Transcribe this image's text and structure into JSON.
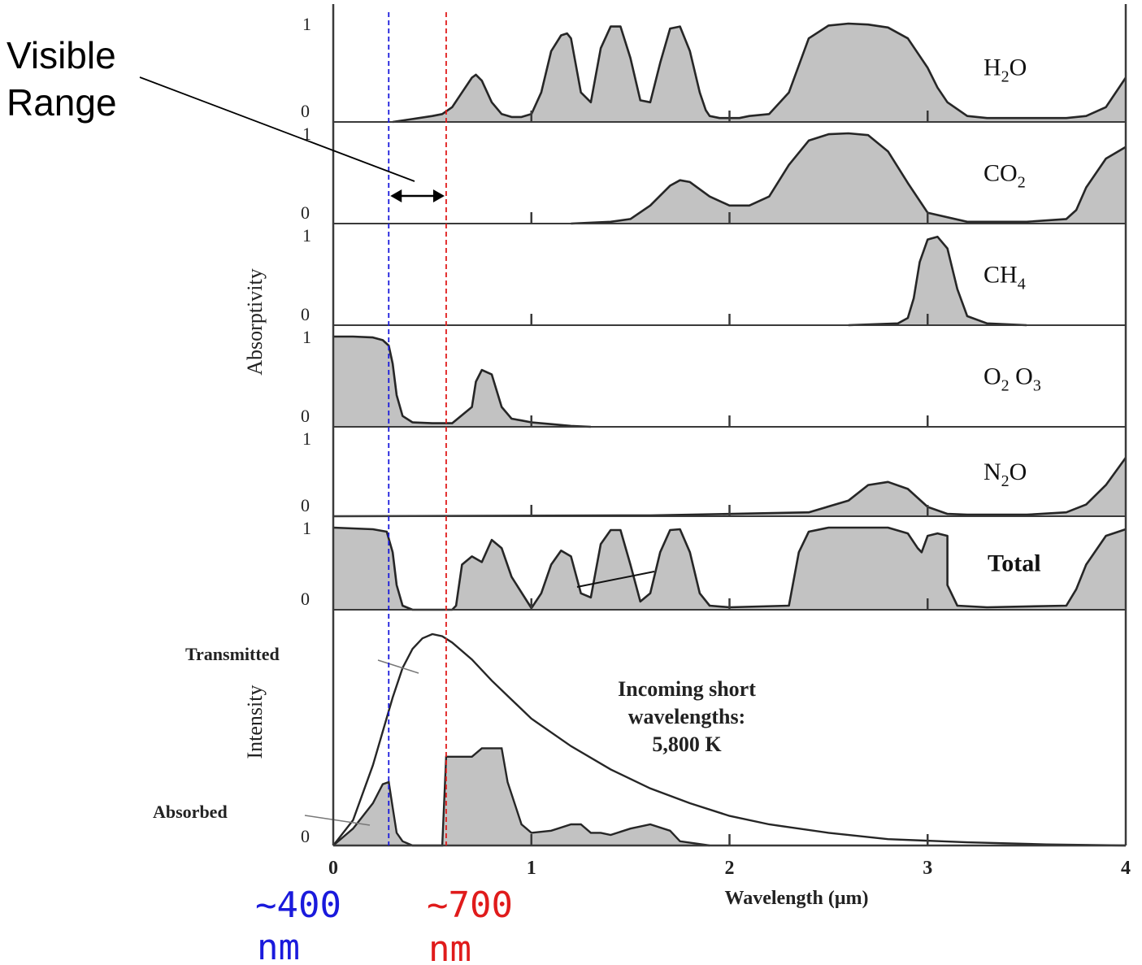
{
  "chart_data": [
    {
      "type": "area",
      "title": "",
      "xlabel": "Wavelength (μm)",
      "ylabel": "Absorptivity",
      "xlim": [
        0,
        4
      ],
      "ylim": [
        0,
        1
      ],
      "x_ticks": [
        "0",
        "1",
        "2",
        "3",
        "4"
      ],
      "y_ticks": [
        "0",
        "1"
      ],
      "grid": false,
      "panels": [
        {
          "key": "h2o",
          "label": "H",
          "label_sub": "2",
          "label_tail": "O",
          "x": [
            0.3,
            0.4,
            0.5,
            0.55,
            0.6,
            0.65,
            0.7,
            0.72,
            0.75,
            0.8,
            0.85,
            0.9,
            0.95,
            1.0,
            1.05,
            1.1,
            1.15,
            1.18,
            1.2,
            1.25,
            1.3,
            1.35,
            1.4,
            1.45,
            1.5,
            1.55,
            1.6,
            1.65,
            1.7,
            1.75,
            1.8,
            1.85,
            1.88,
            1.9,
            1.95,
            2.0,
            2.05,
            2.1,
            2.2,
            2.3,
            2.4,
            2.5,
            2.6,
            2.7,
            2.8,
            2.9,
            3.0,
            3.05,
            3.1,
            3.2,
            3.3,
            3.4,
            3.5,
            3.6,
            3.7,
            3.8,
            3.9,
            4.0
          ],
          "y": [
            0.0,
            0.03,
            0.06,
            0.08,
            0.15,
            0.3,
            0.45,
            0.48,
            0.42,
            0.2,
            0.08,
            0.05,
            0.05,
            0.08,
            0.3,
            0.72,
            0.88,
            0.9,
            0.85,
            0.3,
            0.2,
            0.75,
            0.97,
            0.97,
            0.65,
            0.22,
            0.2,
            0.6,
            0.95,
            0.97,
            0.72,
            0.3,
            0.12,
            0.06,
            0.04,
            0.04,
            0.04,
            0.06,
            0.08,
            0.3,
            0.85,
            0.98,
            1.0,
            0.99,
            0.96,
            0.85,
            0.55,
            0.35,
            0.2,
            0.06,
            0.04,
            0.04,
            0.04,
            0.04,
            0.04,
            0.06,
            0.15,
            0.45
          ]
        },
        {
          "key": "co2",
          "label": "CO",
          "label_sub": "2",
          "label_tail": "",
          "x": [
            1.2,
            1.4,
            1.5,
            1.6,
            1.7,
            1.75,
            1.8,
            1.9,
            2.0,
            2.1,
            2.2,
            2.3,
            2.4,
            2.5,
            2.6,
            2.7,
            2.8,
            2.9,
            3.0,
            3.2,
            3.5,
            3.7,
            3.75,
            3.8,
            3.9,
            4.0
          ],
          "y": [
            0.0,
            0.02,
            0.05,
            0.2,
            0.42,
            0.48,
            0.46,
            0.3,
            0.2,
            0.2,
            0.3,
            0.65,
            0.92,
            0.99,
            1.0,
            0.98,
            0.8,
            0.45,
            0.12,
            0.02,
            0.02,
            0.05,
            0.15,
            0.4,
            0.72,
            0.85
          ]
        },
        {
          "key": "ch4",
          "label": "CH",
          "label_sub": "4",
          "label_tail": "",
          "x": [
            2.6,
            2.85,
            2.9,
            2.93,
            2.96,
            3.0,
            3.05,
            3.1,
            3.15,
            3.2,
            3.3,
            3.5
          ],
          "y": [
            0.0,
            0.02,
            0.08,
            0.3,
            0.7,
            0.95,
            0.98,
            0.85,
            0.4,
            0.1,
            0.02,
            0.0
          ]
        },
        {
          "key": "o2o3",
          "label": "O",
          "label_sub": "2",
          "label_tail": " O",
          "label_sub2": "3",
          "x": [
            0.0,
            0.1,
            0.2,
            0.25,
            0.28,
            0.3,
            0.32,
            0.35,
            0.4,
            0.5,
            0.6,
            0.7,
            0.72,
            0.75,
            0.8,
            0.85,
            0.9,
            0.95,
            1.0,
            1.1,
            1.2,
            1.3
          ],
          "y": [
            1.0,
            1.0,
            0.99,
            0.96,
            0.9,
            0.7,
            0.35,
            0.12,
            0.05,
            0.04,
            0.04,
            0.22,
            0.5,
            0.63,
            0.58,
            0.22,
            0.09,
            0.07,
            0.05,
            0.03,
            0.01,
            0.0
          ]
        },
        {
          "key": "n2o",
          "label": "N",
          "label_sub": "2",
          "label_tail": "O",
          "x": [
            0.0,
            1.6,
            2.4,
            2.6,
            2.7,
            2.8,
            2.9,
            3.0,
            3.1,
            3.2,
            3.5,
            3.7,
            3.8,
            3.9,
            4.0
          ],
          "y": [
            0.0,
            0.01,
            0.05,
            0.2,
            0.4,
            0.44,
            0.35,
            0.12,
            0.03,
            0.02,
            0.02,
            0.05,
            0.15,
            0.4,
            0.75
          ]
        },
        {
          "key": "total",
          "label": "Total",
          "label_sub": "",
          "label_tail": "",
          "x": [
            0.0,
            0.2,
            0.27,
            0.3,
            0.32,
            0.35,
            0.4,
            0.5,
            0.6,
            0.62,
            0.65,
            0.7,
            0.75,
            0.8,
            0.85,
            0.9,
            1.0,
            1.05,
            1.1,
            1.15,
            1.2,
            1.25,
            1.3,
            1.35,
            1.4,
            1.45,
            1.5,
            1.55,
            1.6,
            1.65,
            1.7,
            1.75,
            1.8,
            1.85,
            1.9,
            2.0,
            2.3,
            2.35,
            2.4,
            2.5,
            2.8,
            2.9,
            2.95,
            2.97,
            3.0,
            3.05,
            3.1,
            3.1,
            3.15,
            3.3,
            3.7,
            3.75,
            3.8,
            3.9,
            4.0
          ],
          "y": [
            1.0,
            0.98,
            0.95,
            0.7,
            0.3,
            0.05,
            0.0,
            0.0,
            0.0,
            0.05,
            0.55,
            0.65,
            0.58,
            0.85,
            0.75,
            0.4,
            0.02,
            0.2,
            0.55,
            0.72,
            0.65,
            0.2,
            0.15,
            0.8,
            0.97,
            0.97,
            0.55,
            0.1,
            0.2,
            0.7,
            0.97,
            0.98,
            0.7,
            0.2,
            0.05,
            0.03,
            0.05,
            0.7,
            0.95,
            1.0,
            1.0,
            0.93,
            0.75,
            0.7,
            0.9,
            0.93,
            0.9,
            0.3,
            0.05,
            0.03,
            0.05,
            0.25,
            0.55,
            0.9,
            0.98
          ]
        }
      ]
    },
    {
      "type": "area",
      "title": "Incoming short wavelengths: 5,800 K",
      "title_lines": [
        "Incoming short",
        "wavelengths:",
        "5,800 K"
      ],
      "xlabel": "Wavelength (μm)",
      "ylabel": "Intensity",
      "xlim": [
        0,
        4
      ],
      "ylim": [
        0,
        1
      ],
      "x_ticks": [
        "0",
        "1",
        "2",
        "3",
        "4"
      ],
      "y_ticks": [
        "0"
      ],
      "series": [
        {
          "name": "Transmitted",
          "x": [
            0.0,
            0.1,
            0.2,
            0.3,
            0.35,
            0.4,
            0.45,
            0.5,
            0.55,
            0.6,
            0.7,
            0.8,
            0.9,
            1.0,
            1.2,
            1.4,
            1.6,
            1.8,
            2.0,
            2.2,
            2.5,
            2.8,
            3.2,
            3.6,
            4.0
          ],
          "y": [
            0.0,
            0.12,
            0.38,
            0.7,
            0.84,
            0.93,
            0.98,
            1.0,
            0.99,
            0.96,
            0.88,
            0.78,
            0.69,
            0.6,
            0.47,
            0.36,
            0.27,
            0.2,
            0.14,
            0.1,
            0.06,
            0.03,
            0.015,
            0.005,
            0.0
          ]
        },
        {
          "name": "Absorbed",
          "x": [
            0.0,
            0.1,
            0.2,
            0.25,
            0.28,
            0.3,
            0.32,
            0.35,
            0.4,
            0.45,
            0.5,
            0.55,
            0.57,
            0.6,
            0.7,
            0.75,
            0.85,
            0.88,
            0.95,
            1.0,
            1.1,
            1.2,
            1.25,
            1.3,
            1.35,
            1.4,
            1.5,
            1.6,
            1.7,
            1.75,
            1.9
          ],
          "y": [
            0.0,
            0.08,
            0.2,
            0.29,
            0.3,
            0.18,
            0.06,
            0.02,
            0.0,
            0.0,
            0.0,
            0.0,
            0.42,
            0.42,
            0.42,
            0.46,
            0.46,
            0.3,
            0.1,
            0.06,
            0.07,
            0.1,
            0.1,
            0.06,
            0.06,
            0.05,
            0.08,
            0.1,
            0.07,
            0.02,
            0.0
          ]
        }
      ]
    }
  ],
  "annotations": {
    "visible_range": "Visible\nRange",
    "visible_range_lines": [
      "Visible",
      "Range"
    ],
    "blue_marker": {
      "x_um": 0.28,
      "value": "~400",
      "unit": "nm",
      "color": "#1a1adc"
    },
    "red_marker": {
      "x_um": 0.57,
      "value": "~700",
      "unit": "nm",
      "color": "#e01b1b"
    }
  },
  "colors": {
    "fill": "#c2c2c2",
    "line": "#262626",
    "frame": "#3a3a3a"
  }
}
